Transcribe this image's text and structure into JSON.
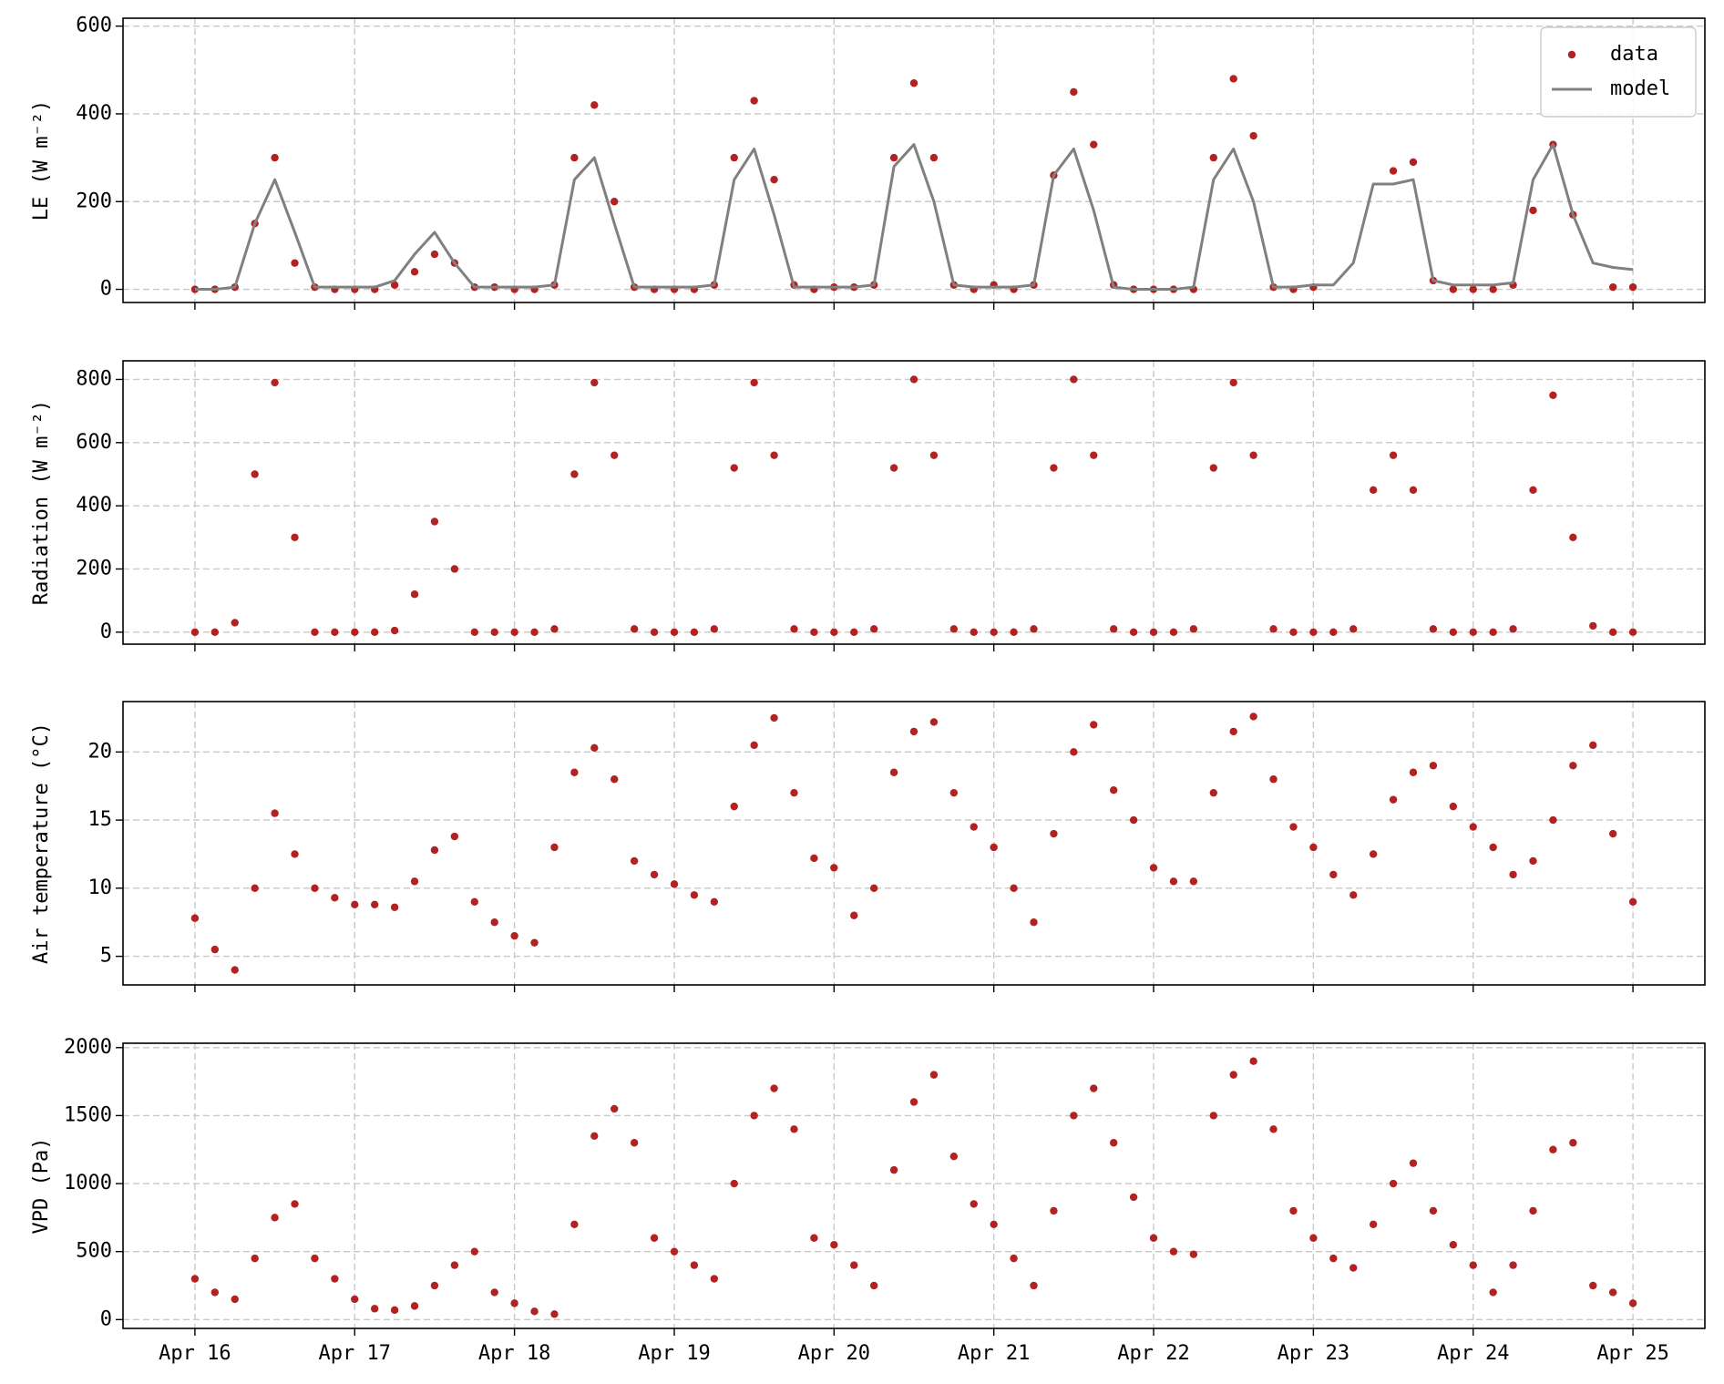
{
  "chart_data": [
    {
      "type": "scatter",
      "ylabel": "LE (W m⁻²)",
      "legend": "upper right",
      "grid": true,
      "xlim": [
        -0.45,
        9.45
      ],
      "xticks": [
        0,
        1,
        2,
        3,
        4,
        5,
        6,
        7,
        8,
        9
      ],
      "ylim": [
        -30,
        618
      ],
      "yticks": [
        0,
        200,
        400,
        600
      ],
      "x": [
        0,
        0.125,
        0.25,
        0.375,
        0.5,
        0.625,
        0.75,
        0.875,
        1,
        1.125,
        1.25,
        1.375,
        1.5,
        1.625,
        1.75,
        1.875,
        2,
        2.125,
        2.25,
        2.375,
        2.5,
        2.625,
        2.75,
        2.875,
        3,
        3.125,
        3.25,
        3.375,
        3.5,
        3.625,
        3.75,
        3.875,
        4,
        4.125,
        4.25,
        4.375,
        4.5,
        4.625,
        4.75,
        4.875,
        5,
        5.125,
        5.25,
        5.375,
        5.5,
        5.625,
        5.75,
        5.875,
        6,
        6.125,
        6.25,
        6.375,
        6.5,
        6.625,
        6.75,
        6.875,
        7,
        7.125,
        7.25,
        7.375,
        7.5,
        7.625,
        7.75,
        7.875,
        8,
        8.125,
        8.25,
        8.375,
        8.5,
        8.625,
        8.75,
        8.875,
        9
      ],
      "series": [
        {
          "name": "data",
          "type": "points",
          "color": "#b22222",
          "values": [
            0,
            0,
            5,
            150,
            300,
            60,
            5,
            0,
            0,
            0,
            10,
            40,
            80,
            60,
            5,
            5,
            0,
            0,
            10,
            300,
            420,
            200,
            5,
            0,
            0,
            0,
            10,
            300,
            430,
            250,
            10,
            0,
            5,
            5,
            10,
            300,
            470,
            300,
            10,
            0,
            10,
            0,
            10,
            260,
            450,
            330,
            10,
            0,
            0,
            0,
            0,
            300,
            480,
            350,
            5,
            0,
            5,
            null,
            null,
            null,
            270,
            290,
            20,
            0,
            0,
            0,
            10,
            180,
            330,
            170,
            null,
            5,
            5
          ]
        },
        {
          "name": "model",
          "type": "line",
          "color": "#808080",
          "values": [
            0,
            0,
            5,
            150,
            250,
            130,
            5,
            5,
            5,
            5,
            20,
            80,
            130,
            60,
            5,
            5,
            5,
            5,
            10,
            250,
            300,
            150,
            5,
            5,
            5,
            5,
            10,
            250,
            320,
            170,
            5,
            5,
            5,
            5,
            10,
            280,
            330,
            200,
            10,
            5,
            5,
            5,
            10,
            260,
            320,
            180,
            5,
            0,
            0,
            0,
            5,
            250,
            320,
            200,
            5,
            5,
            10,
            10,
            60,
            240,
            240,
            250,
            20,
            10,
            10,
            10,
            15,
            250,
            330,
            170,
            60,
            50,
            45
          ]
        }
      ]
    },
    {
      "type": "scatter",
      "ylabel": "Radiation (W m⁻²)",
      "grid": true,
      "xlim": [
        -0.45,
        9.45
      ],
      "xticks": [
        0,
        1,
        2,
        3,
        4,
        5,
        6,
        7,
        8,
        9
      ],
      "ylim": [
        -38,
        859
      ],
      "yticks": [
        0,
        200,
        400,
        600,
        800
      ],
      "x": [
        0,
        0.125,
        0.25,
        0.375,
        0.5,
        0.625,
        0.75,
        0.875,
        1,
        1.125,
        1.25,
        1.375,
        1.5,
        1.625,
        1.75,
        1.875,
        2,
        2.125,
        2.25,
        2.375,
        2.5,
        2.625,
        2.75,
        2.875,
        3,
        3.125,
        3.25,
        3.375,
        3.5,
        3.625,
        3.75,
        3.875,
        4,
        4.125,
        4.25,
        4.375,
        4.5,
        4.625,
        4.75,
        4.875,
        5,
        5.125,
        5.25,
        5.375,
        5.5,
        5.625,
        5.75,
        5.875,
        6,
        6.125,
        6.25,
        6.375,
        6.5,
        6.625,
        6.75,
        6.875,
        7,
        7.125,
        7.25,
        7.375,
        7.5,
        7.625,
        7.75,
        7.875,
        8,
        8.125,
        8.25,
        8.375,
        8.5,
        8.625,
        8.75,
        8.875,
        9
      ],
      "series": [
        {
          "type": "points",
          "color": "#b22222",
          "values": [
            0,
            0,
            30,
            500,
            790,
            300,
            0,
            0,
            0,
            0,
            5,
            120,
            350,
            200,
            0,
            0,
            0,
            0,
            10,
            500,
            790,
            560,
            10,
            0,
            0,
            0,
            10,
            520,
            790,
            560,
            10,
            0,
            0,
            0,
            10,
            520,
            800,
            560,
            10,
            0,
            0,
            0,
            10,
            520,
            800,
            560,
            10,
            0,
            0,
            0,
            10,
            520,
            790,
            560,
            10,
            0,
            0,
            0,
            10,
            450,
            560,
            450,
            10,
            0,
            0,
            0,
            10,
            450,
            750,
            300,
            20,
            0,
            0
          ]
        }
      ]
    },
    {
      "type": "scatter",
      "ylabel": "Air temperature (°C)",
      "grid": true,
      "xlim": [
        -0.45,
        9.45
      ],
      "xticks": [
        0,
        1,
        2,
        3,
        4,
        5,
        6,
        7,
        8,
        9
      ],
      "ylim": [
        2.9,
        23.7
      ],
      "yticks": [
        5,
        10,
        15,
        20
      ],
      "x": [
        0,
        0.125,
        0.25,
        0.375,
        0.5,
        0.625,
        0.75,
        0.875,
        1,
        1.125,
        1.25,
        1.375,
        1.5,
        1.625,
        1.75,
        1.875,
        2,
        2.125,
        2.25,
        2.375,
        2.5,
        2.625,
        2.75,
        2.875,
        3,
        3.125,
        3.25,
        3.375,
        3.5,
        3.625,
        3.75,
        3.875,
        4,
        4.125,
        4.25,
        4.375,
        4.5,
        4.625,
        4.75,
        4.875,
        5,
        5.125,
        5.25,
        5.375,
        5.5,
        5.625,
        5.75,
        5.875,
        6,
        6.125,
        6.25,
        6.375,
        6.5,
        6.625,
        6.75,
        6.875,
        7,
        7.125,
        7.25,
        7.375,
        7.5,
        7.625,
        7.75,
        7.875,
        8,
        8.125,
        8.25,
        8.375,
        8.5,
        8.625,
        8.75,
        8.875,
        9
      ],
      "series": [
        {
          "type": "points",
          "color": "#b22222",
          "values": [
            7.8,
            5.5,
            4,
            10,
            15.5,
            12.5,
            10,
            9.3,
            8.8,
            8.8,
            8.6,
            10.5,
            12.8,
            13.8,
            9,
            7.5,
            6.5,
            6,
            13,
            18.5,
            20.3,
            18,
            12,
            11,
            10.3,
            9.5,
            9,
            16,
            20.5,
            22.5,
            17,
            12.2,
            11.5,
            8,
            10,
            18.5,
            21.5,
            22.2,
            17,
            14.5,
            13,
            10,
            7.5,
            14,
            20,
            22,
            17.2,
            15,
            11.5,
            10.5,
            10.5,
            17,
            21.5,
            22.6,
            18,
            14.5,
            13,
            11,
            9.5,
            12.5,
            16.5,
            18.5,
            19,
            16,
            14.5,
            13,
            11,
            12,
            15,
            19,
            20.5,
            14,
            9
          ]
        }
      ]
    },
    {
      "type": "scatter",
      "ylabel": "VPD (Pa)",
      "grid": true,
      "xlim": [
        -0.45,
        9.45
      ],
      "xticks": [
        {
          "value": 0,
          "label": "Apr 16"
        },
        {
          "value": 1,
          "label": "Apr 17"
        },
        {
          "value": 2,
          "label": "Apr 18"
        },
        {
          "value": 3,
          "label": "Apr 19"
        },
        {
          "value": 4,
          "label": "Apr 20"
        },
        {
          "value": 5,
          "label": "Apr 21"
        },
        {
          "value": 6,
          "label": "Apr 22"
        },
        {
          "value": 7,
          "label": "Apr 23"
        },
        {
          "value": 8,
          "label": "Apr 24"
        },
        {
          "value": 9,
          "label": "Apr 25"
        }
      ],
      "ylim": [
        -65,
        2032
      ],
      "yticks": [
        0,
        500,
        1000,
        1500,
        2000
      ],
      "x": [
        0,
        0.125,
        0.25,
        0.375,
        0.5,
        0.625,
        0.75,
        0.875,
        1,
        1.125,
        1.25,
        1.375,
        1.5,
        1.625,
        1.75,
        1.875,
        2,
        2.125,
        2.25,
        2.375,
        2.5,
        2.625,
        2.75,
        2.875,
        3,
        3.125,
        3.25,
        3.375,
        3.5,
        3.625,
        3.75,
        3.875,
        4,
        4.125,
        4.25,
        4.375,
        4.5,
        4.625,
        4.75,
        4.875,
        5,
        5.125,
        5.25,
        5.375,
        5.5,
        5.625,
        5.75,
        5.875,
        6,
        6.125,
        6.25,
        6.375,
        6.5,
        6.625,
        6.75,
        6.875,
        7,
        7.125,
        7.25,
        7.375,
        7.5,
        7.625,
        7.75,
        7.875,
        8,
        8.125,
        8.25,
        8.375,
        8.5,
        8.625,
        8.75,
        8.875,
        9
      ],
      "series": [
        {
          "type": "points",
          "color": "#b22222",
          "values": [
            300,
            200,
            150,
            450,
            750,
            850,
            450,
            300,
            150,
            80,
            70,
            100,
            250,
            400,
            500,
            200,
            120,
            60,
            40,
            700,
            1350,
            1550,
            1300,
            600,
            500,
            400,
            300,
            1000,
            1500,
            1700,
            1400,
            600,
            550,
            400,
            250,
            1100,
            1600,
            1800,
            1200,
            850,
            700,
            450,
            250,
            800,
            1500,
            1700,
            1300,
            900,
            600,
            500,
            480,
            1500,
            1800,
            1900,
            1400,
            800,
            600,
            450,
            380,
            700,
            1000,
            1150,
            800,
            550,
            400,
            200,
            400,
            800,
            1250,
            1300,
            250,
            200,
            120
          ]
        }
      ]
    }
  ]
}
